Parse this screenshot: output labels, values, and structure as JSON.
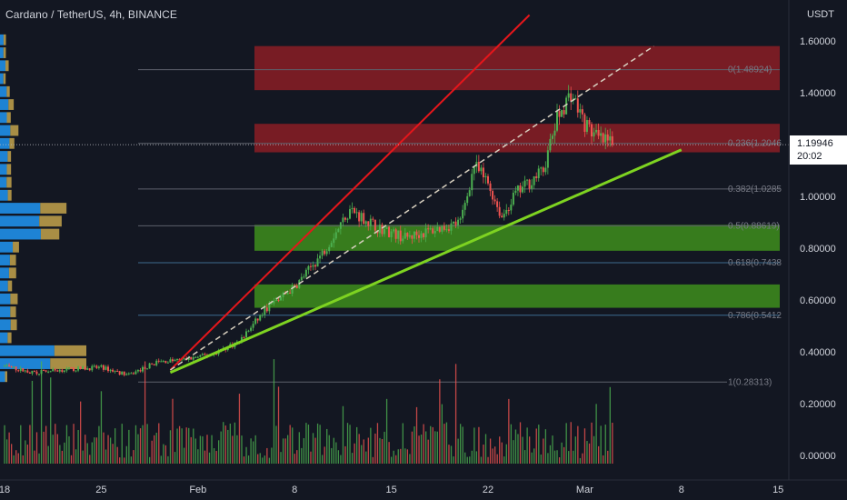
{
  "header": {
    "symbol_line": "Cardano / TetherUS, 4h, BINANCE"
  },
  "price_axis": {
    "unit": "USDT",
    "current_price": "1.19946",
    "countdown": "20:02"
  },
  "colors": {
    "background": "#131722",
    "candle_up": "#4caf50",
    "candle_down": "#ef5350",
    "resistance_zone": "#8b1d24",
    "support_zone": "#3e8e1c",
    "uptrend_line": "#7ed321",
    "fan_line": "#e5161b",
    "channel_line": "#d8d0c0",
    "vp_up": "#2196f3",
    "vp_down": "#c4a34b"
  },
  "chart_data": {
    "type": "candlestick",
    "title": "Cardano / TetherUS, 4h, BINANCE",
    "y_unit": "USDT",
    "ylim": [
      -0.03,
      1.71
    ],
    "y_ticks": [
      0.0,
      0.2,
      0.4,
      0.6,
      0.8,
      1.0,
      1.2,
      1.4,
      1.6
    ],
    "y_tick_labels": [
      "0.00000",
      "0.20000",
      "0.40000",
      "0.60000",
      "0.80000",
      "1.00000",
      "1.20000",
      "1.40000",
      "1.60000"
    ],
    "x_ticks": [
      {
        "label": "18",
        "date": "2021-01-18"
      },
      {
        "label": "25",
        "date": "2021-01-25"
      },
      {
        "label": "Feb",
        "date": "2021-02-01"
      },
      {
        "label": "8",
        "date": "2021-02-08"
      },
      {
        "label": "15",
        "date": "2021-02-15"
      },
      {
        "label": "22",
        "date": "2021-02-22"
      },
      {
        "label": "Mar",
        "date": "2021-03-01"
      },
      {
        "label": "8",
        "date": "2021-03-08"
      },
      {
        "label": "15",
        "date": "2021-03-15"
      }
    ],
    "xlim": [
      "2021-01-18",
      "2021-03-20"
    ],
    "price_path": [
      {
        "date": "2021-01-18",
        "close": 0.345
      },
      {
        "date": "2021-01-20",
        "close": 0.32
      },
      {
        "date": "2021-01-22",
        "close": 0.33
      },
      {
        "date": "2021-01-25",
        "close": 0.34
      },
      {
        "date": "2021-01-27",
        "close": 0.31
      },
      {
        "date": "2021-01-29",
        "close": 0.36
      },
      {
        "date": "2021-01-31",
        "close": 0.37
      },
      {
        "date": "2021-02-02",
        "close": 0.39
      },
      {
        "date": "2021-02-04",
        "close": 0.44
      },
      {
        "date": "2021-02-06",
        "close": 0.57
      },
      {
        "date": "2021-02-08",
        "close": 0.65
      },
      {
        "date": "2021-02-10",
        "close": 0.78
      },
      {
        "date": "2021-02-12",
        "close": 0.95
      },
      {
        "date": "2021-02-14",
        "close": 0.88
      },
      {
        "date": "2021-02-16",
        "close": 0.84
      },
      {
        "date": "2021-02-18",
        "close": 0.87
      },
      {
        "date": "2021-02-20",
        "close": 0.9
      },
      {
        "date": "2021-02-21",
        "close": 1.12
      },
      {
        "date": "2021-02-22",
        "close": 1.05
      },
      {
        "date": "2021-02-23",
        "close": 0.92
      },
      {
        "date": "2021-02-24",
        "close": 1.01
      },
      {
        "date": "2021-02-26",
        "close": 1.1
      },
      {
        "date": "2021-02-27",
        "close": 1.3
      },
      {
        "date": "2021-02-28",
        "close": 1.4
      },
      {
        "date": "2021-03-01",
        "close": 1.28
      },
      {
        "date": "2021-03-02",
        "close": 1.22
      },
      {
        "date": "2021-03-03",
        "close": 1.2
      }
    ],
    "fib_levels": [
      {
        "label": "0(1.48924)",
        "value": 1.48924
      },
      {
        "label": "0.236(1.2046",
        "value": 1.2046
      },
      {
        "label": "0.382(1.0285",
        "value": 1.0285
      },
      {
        "label": "0.5(0.88619)",
        "value": 0.88619
      },
      {
        "label": "0.618(0.7438",
        "value": 0.7438
      },
      {
        "label": "0.786(0.5412",
        "value": 0.5412
      },
      {
        "label": "1(0.28313)",
        "value": 0.28313
      }
    ],
    "zones": [
      {
        "kind": "resistance",
        "from": "2021-02-05",
        "to": "2021-03-20",
        "low": 1.41,
        "high": 1.58
      },
      {
        "kind": "resistance",
        "from": "2021-02-05",
        "to": "2021-03-20",
        "low": 1.17,
        "high": 1.28
      },
      {
        "kind": "support",
        "from": "2021-02-05",
        "to": "2021-03-20",
        "low": 0.79,
        "high": 0.89
      },
      {
        "kind": "support",
        "from": "2021-02-05",
        "to": "2021-03-20",
        "low": 0.57,
        "high": 0.66
      }
    ],
    "trend_lines": [
      {
        "kind": "uptrend-support",
        "from": {
          "date": "2021-01-30",
          "value": 0.32
        },
        "to": {
          "date": "2021-03-08",
          "value": 1.18
        }
      },
      {
        "kind": "fan-steep",
        "from": {
          "date": "2021-01-30",
          "value": 0.33
        },
        "to": {
          "date": "2021-02-25",
          "value": 1.7
        }
      },
      {
        "kind": "channel-dashed",
        "from": {
          "date": "2021-01-30",
          "value": 0.33
        },
        "to": {
          "date": "2021-03-06",
          "value": 1.58
        }
      }
    ],
    "grid": false,
    "legend": "none"
  }
}
